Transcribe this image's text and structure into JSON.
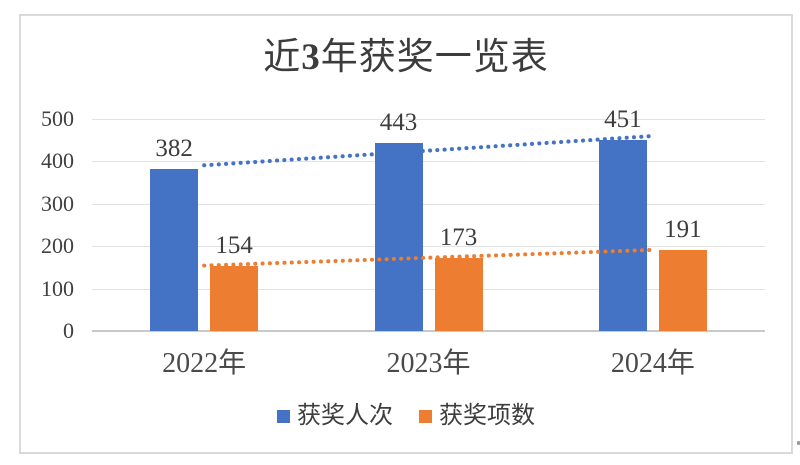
{
  "header": {
    "title_parts": {
      "pre": "近",
      "num": "3",
      "post": "年获奖一览表"
    }
  },
  "chart_data": {
    "type": "bar",
    "title": "近3年获奖一览表",
    "categories": [
      "2022年",
      "2023年",
      "2024年"
    ],
    "series": [
      {
        "name": "获奖人次",
        "color": "#4472C4",
        "values": [
          382,
          443,
          451
        ],
        "trendline": "linear-dotted"
      },
      {
        "name": "获奖项数",
        "color": "#ED7D31",
        "values": [
          154,
          173,
          191
        ],
        "trendline": "linear-dotted"
      }
    ],
    "yticks": [
      0,
      100,
      200,
      300,
      400,
      500
    ],
    "ylim": [
      0,
      500
    ],
    "grid": true,
    "data_labels": true,
    "legend_position": "bottom"
  },
  "colors": {
    "blue": "#4472C4",
    "orange": "#ED7D31",
    "gridline": "#E2E2E2",
    "axis_line": "#C9C9C9",
    "text": "#3D3D3D",
    "frame_border": "#D9D9D9",
    "background": "#FFFFFF"
  }
}
